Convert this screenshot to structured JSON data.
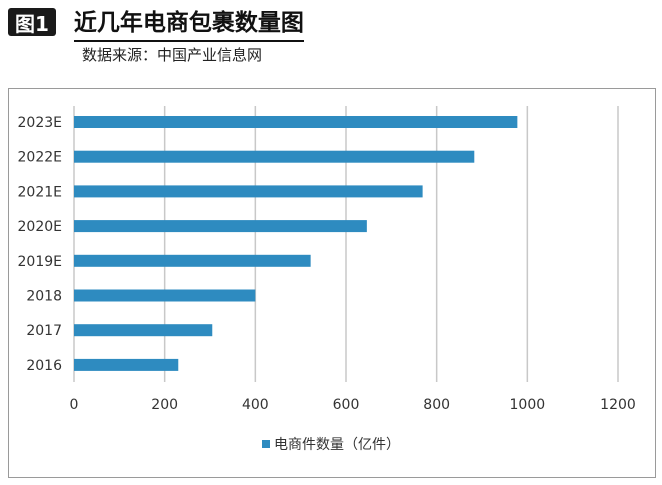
{
  "header": {
    "figure_label": "图1",
    "title": "近几年电商包裹数量图",
    "source": "数据来源：中国产业信息网"
  },
  "colors": {
    "bar": "#2e8bc0",
    "grid": "#c8c8c8",
    "axis_text": "#333333"
  },
  "chart_data": {
    "type": "bar",
    "orientation": "horizontal",
    "categories": [
      "2023E",
      "2022E",
      "2021E",
      "2020E",
      "2019E",
      "2018",
      "2017",
      "2016"
    ],
    "series": [
      {
        "name": "电商件数量（亿件）",
        "values": [
          978,
          883,
          769,
          646,
          522,
          400,
          305,
          230
        ]
      }
    ],
    "xlim": [
      0,
      1200
    ],
    "x_ticks": [
      0,
      200,
      400,
      600,
      800,
      1000,
      1200
    ],
    "grid": true,
    "legend_position": "bottom"
  }
}
